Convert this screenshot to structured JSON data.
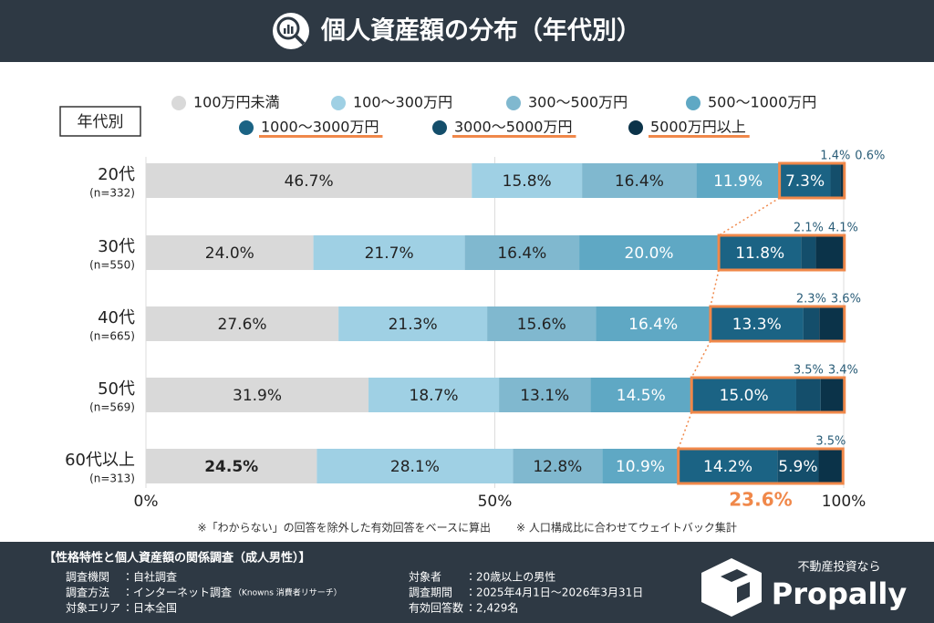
{
  "header": {
    "title": "個人資産額の分布（年代別）"
  },
  "chart_data": {
    "type": "stacked-bar-horizontal",
    "axis_label": "年代別",
    "categories": [
      "20代",
      "30代",
      "40代",
      "50代",
      "60代以上"
    ],
    "sample_sizes": [
      "(n=332)",
      "(n=550)",
      "(n=665)",
      "(n=569)",
      "(n=313)"
    ],
    "xlim": [
      0,
      100
    ],
    "xticks": [
      {
        "value": 0,
        "label": "0%"
      },
      {
        "value": 50,
        "label": "50%"
      },
      {
        "value": 100,
        "label": "100%"
      }
    ],
    "grid": true,
    "series": [
      {
        "name": "100万円未満",
        "color": "#d9d9d9",
        "values": [
          46.7,
          24.0,
          27.6,
          31.9,
          24.5
        ],
        "value_labels": [
          "46.7%",
          "24.0%",
          "27.6%",
          "31.9%",
          "24.5%"
        ]
      },
      {
        "name": "100〜300万円",
        "color": "#9fd0e4",
        "values": [
          15.8,
          21.7,
          21.3,
          18.7,
          28.1
        ],
        "value_labels": [
          "15.8%",
          "21.7%",
          "21.3%",
          "18.7%",
          "28.1%"
        ]
      },
      {
        "name": "300〜500万円",
        "color": "#80b8cf",
        "values": [
          16.4,
          16.4,
          15.6,
          13.1,
          12.8
        ],
        "value_labels": [
          "16.4%",
          "16.4%",
          "15.6%",
          "13.1%",
          "12.8%"
        ]
      },
      {
        "name": "500〜1000万円",
        "color": "#5fa8c4",
        "values": [
          11.9,
          20.0,
          16.4,
          14.5,
          10.9
        ],
        "value_labels": [
          "11.9%",
          "20.0%",
          "16.4%",
          "14.5%",
          "10.9%"
        ]
      },
      {
        "name": "1000〜3000万円",
        "color": "#1b6384",
        "values": [
          7.3,
          11.8,
          13.3,
          15.0,
          14.2
        ],
        "value_labels": [
          "7.3%",
          "11.8%",
          "13.3%",
          "15.0%",
          "14.2%"
        ]
      },
      {
        "name": "3000〜5000万円",
        "color": "#144e6b",
        "values": [
          1.4,
          2.1,
          2.3,
          3.5,
          5.9
        ],
        "value_labels": [
          "1.4%",
          "2.1%",
          "2.3%",
          "3.5%",
          "5.9%"
        ]
      },
      {
        "name": "5000万円以上",
        "color": "#0b3349",
        "values": [
          0.6,
          4.1,
          3.6,
          3.4,
          3.5
        ],
        "value_labels": [
          "0.6%",
          "4.1%",
          "3.6%",
          "3.4%",
          "3.5%"
        ]
      }
    ],
    "annotations": [
      {
        "value": 23.6,
        "label": "23.6%"
      }
    ],
    "notes": [
      "※「わからない」の回答を除外した有効回答をベースに算出",
      "※ 人口構成比に合わせてウェイトバック集計"
    ]
  },
  "footer": {
    "survey_title": "【性格特性と個人資産額の関係調査（成人男性）】",
    "items": [
      {
        "label": "調査機関",
        "value": "：自社調査"
      },
      {
        "label": "調査方法",
        "value": "：インターネット調査",
        "note": "（Knowns 消費者リサーチ）"
      },
      {
        "label": "対象エリア",
        "value": "：日本全国"
      },
      {
        "label": "対象者",
        "value": "：20歳以上の男性"
      },
      {
        "label": "調査期間",
        "value": "：2025年4月1日〜2026年3月31日"
      },
      {
        "label": "有効回答数",
        "value": "：2,429名"
      }
    ],
    "brand_tagline": "不動産投資なら",
    "brand_name": "Propally"
  }
}
